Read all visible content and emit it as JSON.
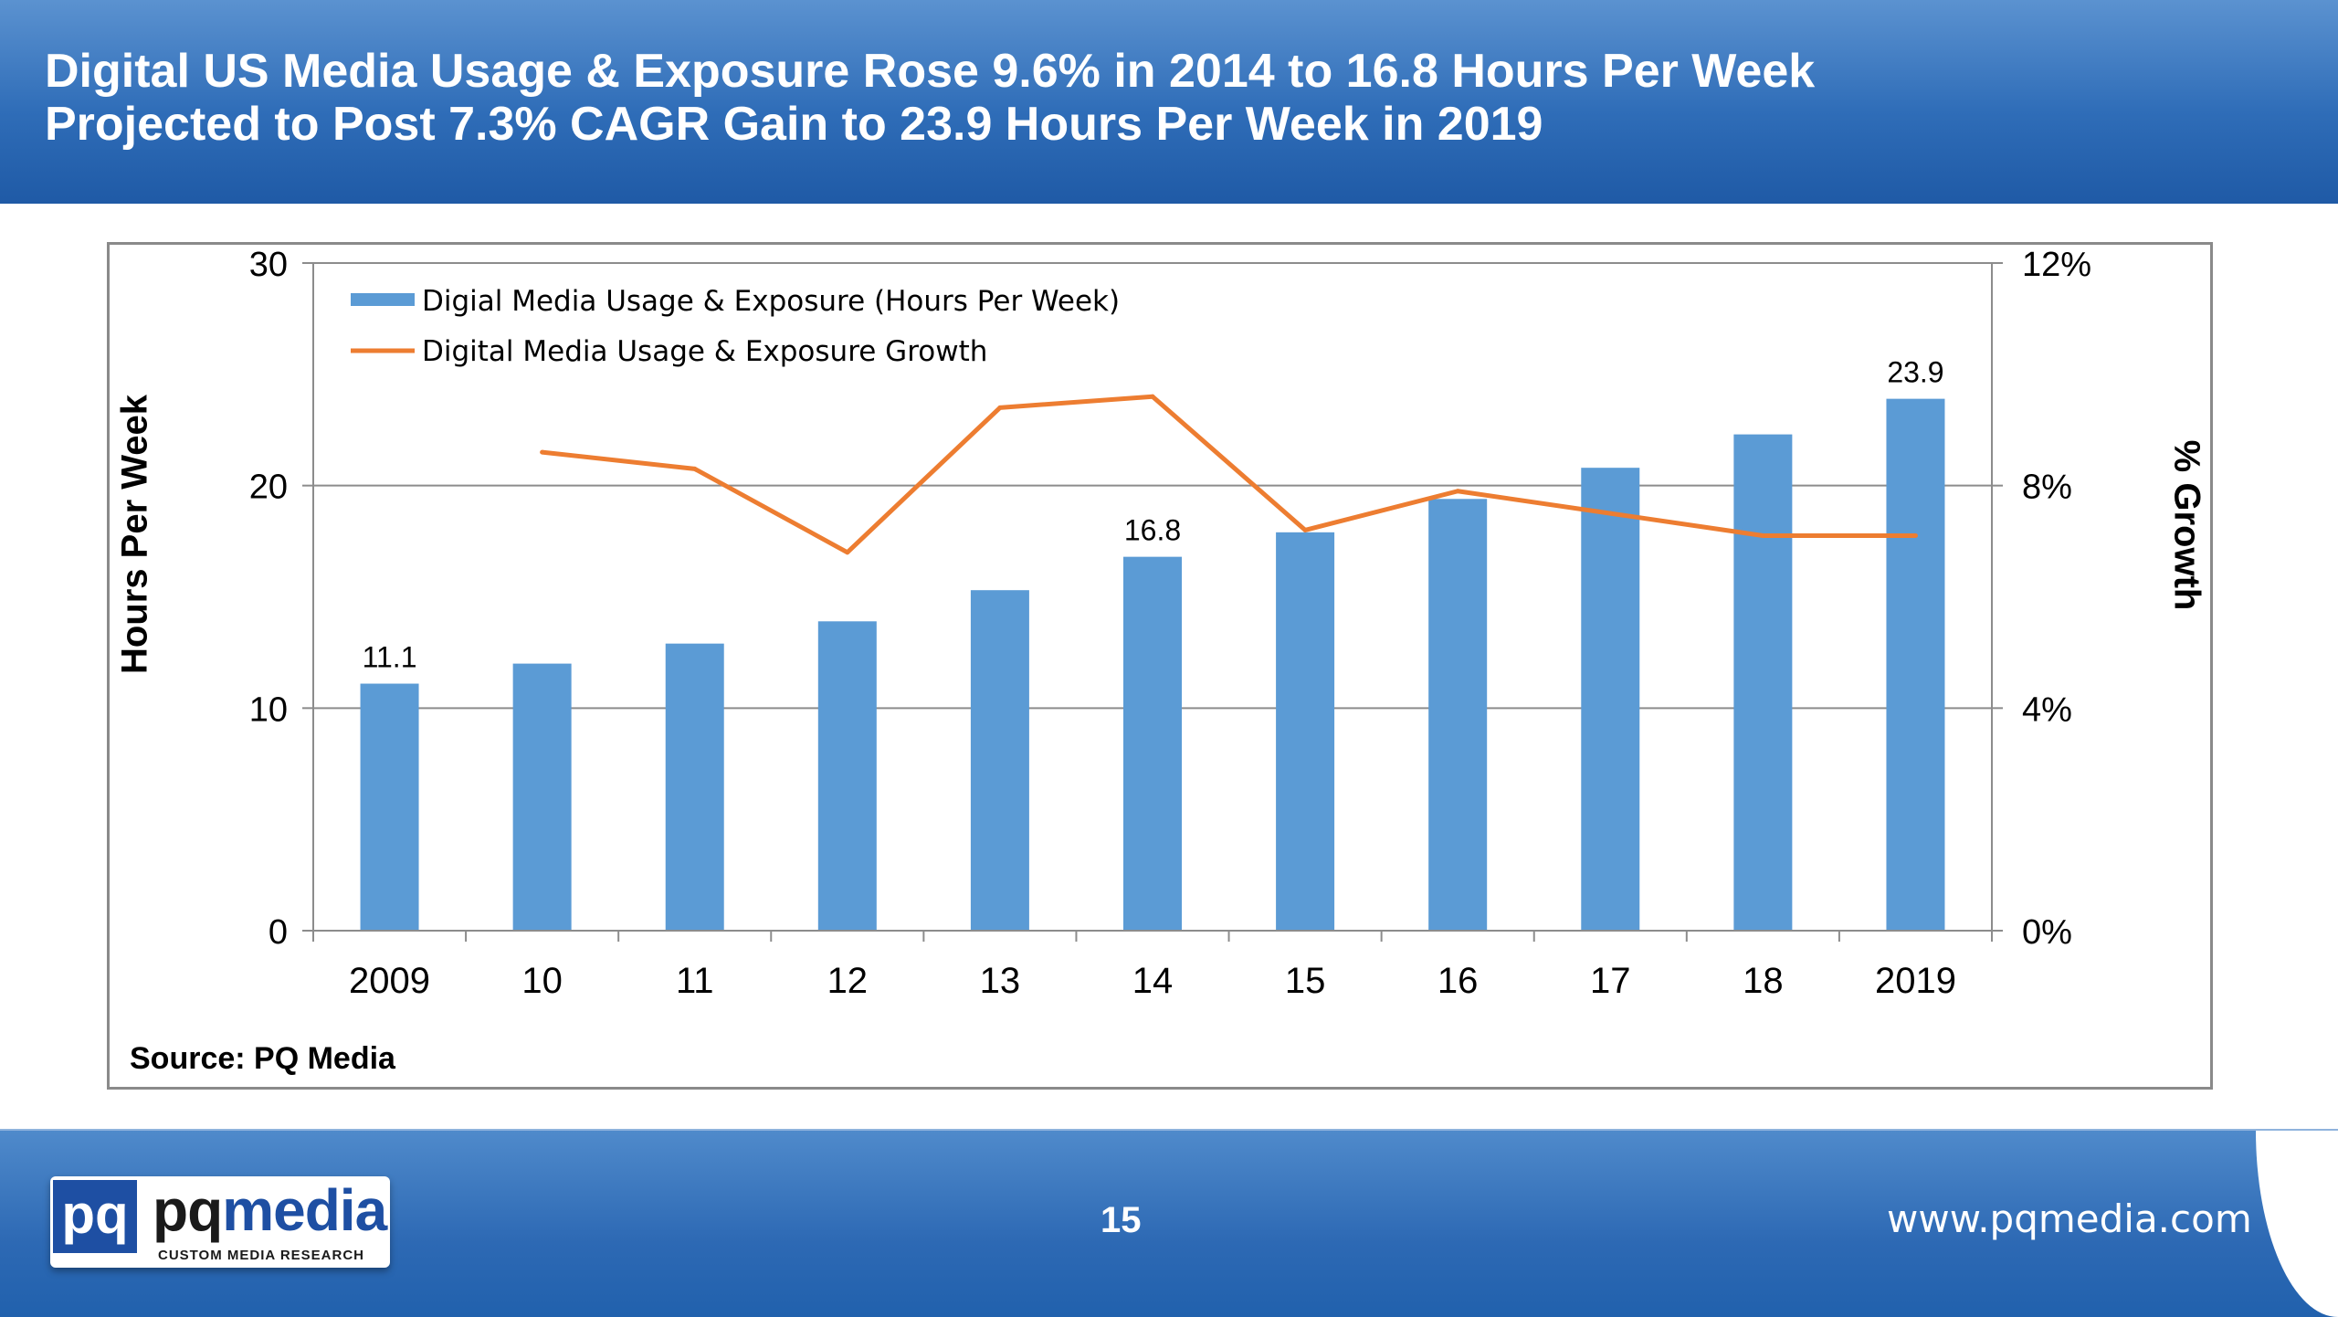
{
  "header": {
    "title_line1": "Digital US Media Usage & Exposure Rose 9.6% in 2014 to 16.8 Hours Per Week",
    "title_line2": "Projected to Post 7.3% CAGR Gain to 23.9 Hours Per Week in 2019"
  },
  "chart_data": {
    "type": "bar",
    "categories": [
      "2009",
      "10",
      "11",
      "12",
      "13",
      "14",
      "15",
      "16",
      "17",
      "18",
      "2019"
    ],
    "series": [
      {
        "name": "Digial Media Usage & Exposure (Hours Per Week)",
        "type": "bar",
        "axis": "left",
        "color": "#5b9bd5",
        "values": [
          11.1,
          12.0,
          12.9,
          13.9,
          15.3,
          16.8,
          17.9,
          19.4,
          20.8,
          22.3,
          23.9
        ]
      },
      {
        "name": "Digital Media Usage & Exposure Growth",
        "type": "line",
        "axis": "right",
        "color": "#ed7d31",
        "values": [
          null,
          8.6,
          8.3,
          6.8,
          9.4,
          9.6,
          7.2,
          7.9,
          7.5,
          7.1,
          7.1
        ]
      }
    ],
    "data_labels": [
      {
        "category": "2009",
        "text": "11.1"
      },
      {
        "category": "14",
        "text": "16.8"
      },
      {
        "category": "2019",
        "text": "23.9"
      }
    ],
    "ylabel": "Hours Per Week",
    "y2label": "% Growth",
    "ylim": [
      0,
      30
    ],
    "y2lim": [
      0,
      12
    ],
    "yticks": [
      "0",
      "10",
      "20",
      "30"
    ],
    "y2ticks": [
      "0%",
      "4%",
      "8%",
      "12%"
    ],
    "grid": true,
    "legend": "top-left",
    "source": "Source: PQ Media"
  },
  "footer": {
    "page_number": "15",
    "website": "www.pqmedia.com",
    "logo": {
      "mark": "pq",
      "word_dark": "pq",
      "word_accent": "media",
      "tagline": "CUSTOM MEDIA RESEARCH"
    }
  }
}
